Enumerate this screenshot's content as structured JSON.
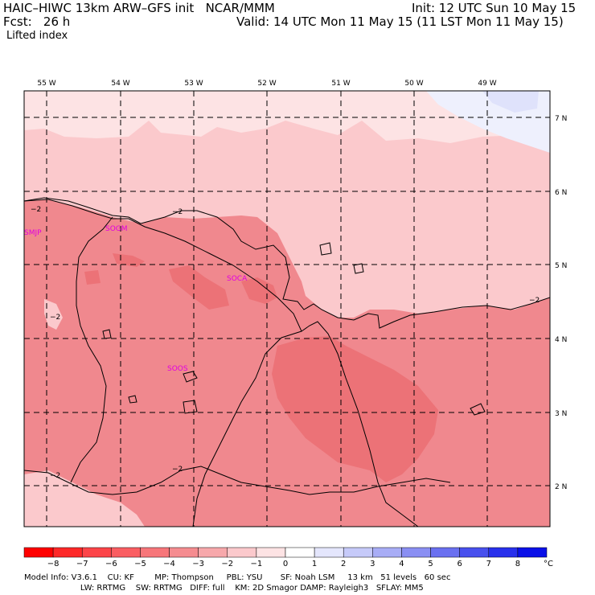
{
  "header": {
    "title_line1": "HAIC–HIWC 13km ARW–GFS init   NCAR/MMM",
    "init": "Init: 12 UTC Sun 10 May 15",
    "fcst": "Fcst:   26 h",
    "valid": "Valid: 14 UTC Mon 11 May 15 (11 LST Mon 11 May 15)",
    "field": "Lifted index"
  },
  "map": {
    "lon_labels": [
      "55 W",
      "54 W",
      "53 W",
      "52 W",
      "51 W",
      "50 W",
      "49 W"
    ],
    "lat_labels": [
      "7 N",
      "6 N",
      "5 N",
      "4 N",
      "3 N",
      "2 N"
    ],
    "sites": [
      "SMJP",
      "SOGM",
      "SOCA",
      "SOOS"
    ],
    "contour_label": "−2",
    "colors": {
      "land_mid": "#f0888e",
      "land_light": "#f59aa0",
      "sea_light": "#fbc9cc",
      "sea_lighter": "#fde3e4",
      "dark_patch": "#ec7277",
      "blue_patch": "#dfe2fb",
      "blue_light": "#eef0fd",
      "site_text": "#e000e0"
    }
  },
  "colorbar": {
    "unit": "°C",
    "labels": [
      "−8",
      "−7",
      "−6",
      "−5",
      "−4",
      "−3",
      "−2",
      "−1",
      "0",
      "1",
      "2",
      "3",
      "4",
      "5",
      "6",
      "7",
      "8"
    ],
    "colors": [
      "#ff0000",
      "#fe2828",
      "#fc4448",
      "#fa5e62",
      "#f7767a",
      "#f58c90",
      "#f7a8ab",
      "#fbc9cc",
      "#fde3e4",
      "#ffffff",
      "#e4e6fc",
      "#c6caf9",
      "#a8adf6",
      "#8a8ff3",
      "#6a70f0",
      "#4850ee",
      "#2830ec",
      "#0a10e8"
    ]
  },
  "footer": {
    "line1": "Model Info: V3.6.1    CU: KF        MP: Thompson     PBL: YSU       SF: Noah LSM     13 km   51 levels   60 sec",
    "line2": "                      LW: RRTMG    SW: RRTMG   DIFF: full    KM: 2D Smagor DAMP: Rayleigh3   SFLAY: MM5"
  }
}
